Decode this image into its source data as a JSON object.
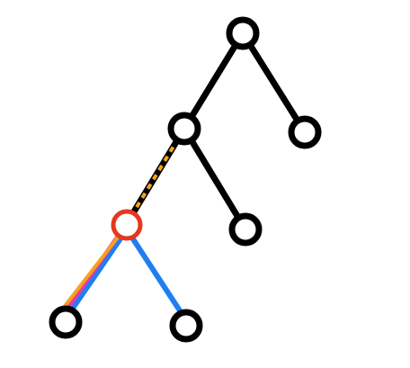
{
  "diagram": {
    "kind": "binary-tree",
    "nodes": [
      {
        "id": "root"
      },
      {
        "id": "left"
      },
      {
        "id": "right"
      },
      {
        "id": "left-left",
        "highlight": "red-ring"
      },
      {
        "id": "left-right"
      },
      {
        "id": "leaf-a"
      },
      {
        "id": "leaf-b"
      }
    ],
    "edges": [
      {
        "from": "root",
        "to": "left",
        "style": "solid-black"
      },
      {
        "from": "root",
        "to": "right",
        "style": "solid-black"
      },
      {
        "from": "left",
        "to": "left-left",
        "style": "black-orange-dashed"
      },
      {
        "from": "left",
        "to": "left-right",
        "style": "solid-black"
      },
      {
        "from": "left-left",
        "to": "leaf-a",
        "style": "orange-magenta-blue"
      },
      {
        "from": "left-left",
        "to": "leaf-b",
        "style": "solid-blue"
      }
    ],
    "colors": {
      "edge": "#000000",
      "dash": "#f6a21c",
      "orange": "#f6a21c",
      "magenta": "#e23ba8",
      "blue": "#1f7ff0",
      "highlight_ring": "#e8361e",
      "node_fill": "#ffffff"
    }
  }
}
